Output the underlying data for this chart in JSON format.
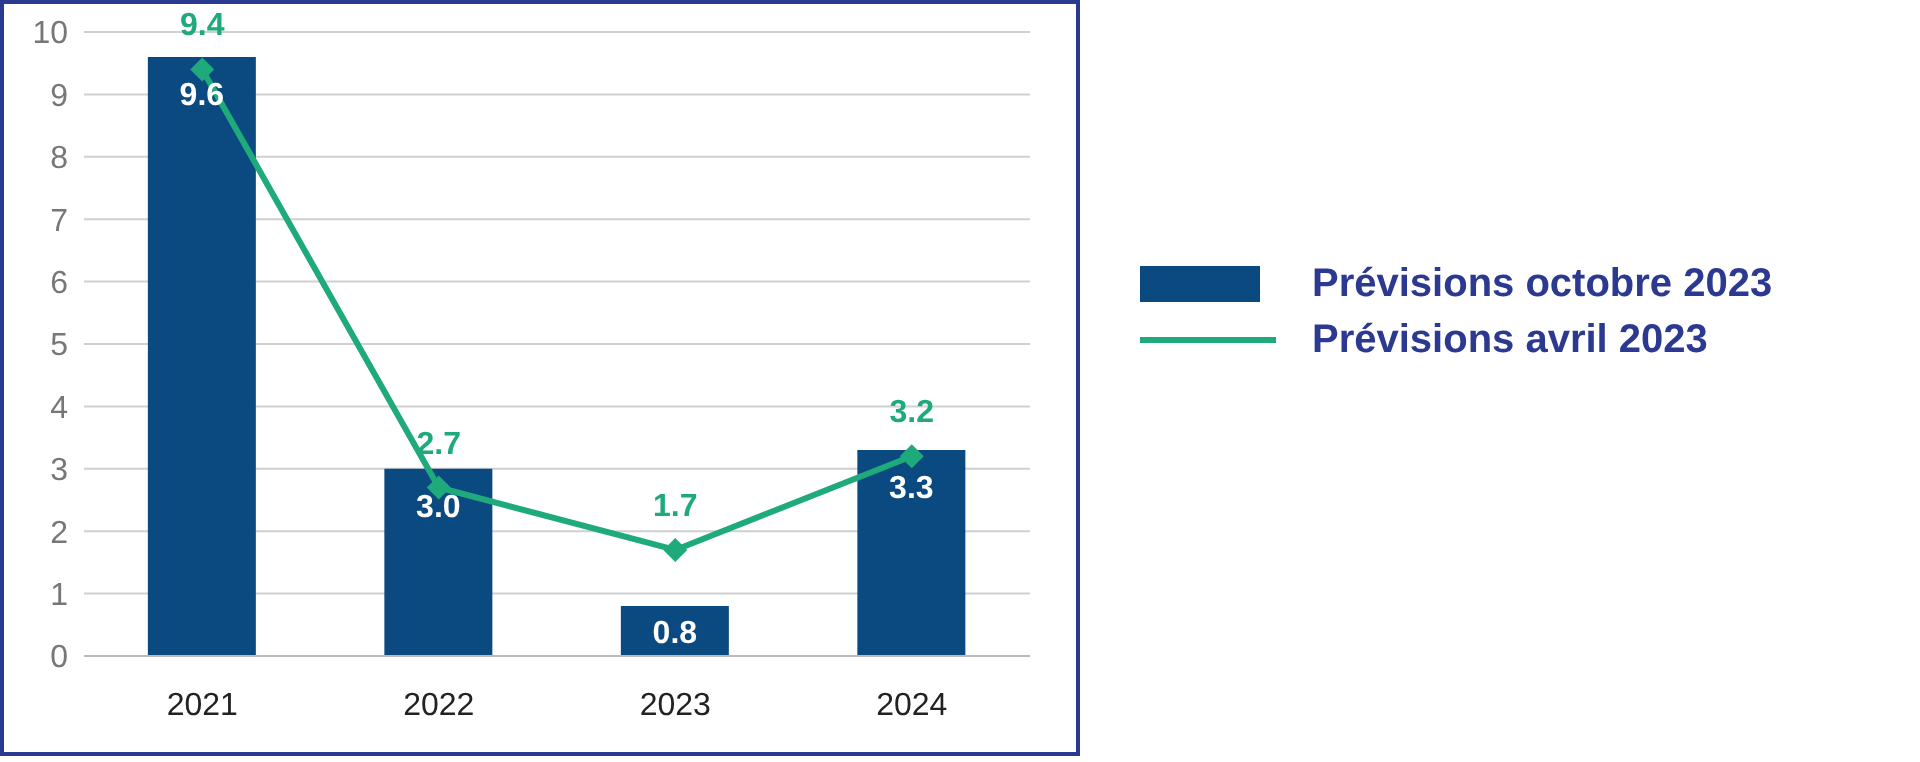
{
  "chart_data": {
    "type": "bar",
    "categories": [
      "2021",
      "2022",
      "2023",
      "2024"
    ],
    "series": [
      {
        "name": "Prévisions octobre 2023",
        "color": "#0b4a80",
        "values": [
          9.6,
          3.0,
          0.8,
          3.3
        ],
        "value_labels": [
          "9.6",
          "3.0",
          "0.8",
          "3.3"
        ]
      },
      {
        "name": "Prévisions avril 2023",
        "type": "line",
        "color": "#1faa7c",
        "values": [
          9.4,
          2.7,
          1.7,
          3.2
        ],
        "value_labels": [
          "9.4",
          "2.7",
          "1.7",
          "3.2"
        ]
      }
    ],
    "ylim": [
      0,
      10
    ],
    "yticks": [
      0,
      1,
      2,
      3,
      4,
      5,
      6,
      7,
      8,
      9,
      10
    ],
    "grid": "y",
    "legend": "right",
    "marker": "diamond"
  }
}
